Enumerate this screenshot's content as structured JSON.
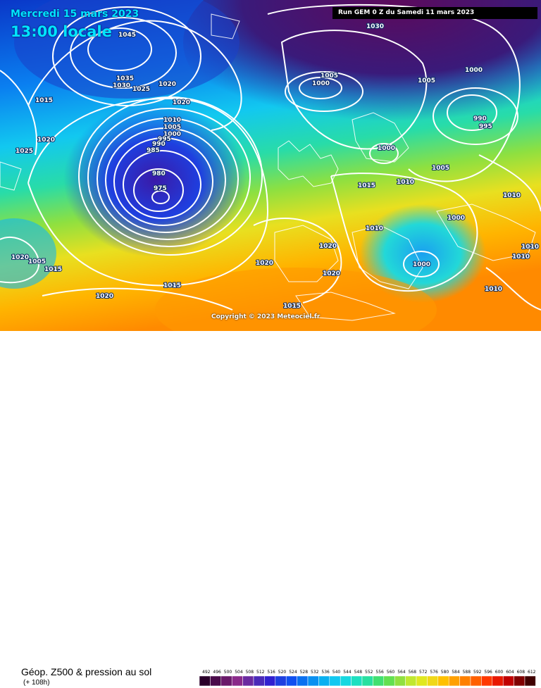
{
  "map": {
    "date_label": "Mercredi 15 mars 2023",
    "time_label": "13:00 locale",
    "run_label": "Run GEM 0 Z du Samedi 11 mars 2023",
    "copyright": "Copyright © 2023 Meteociel.fr",
    "isobar_labels": [
      "1045",
      "1035",
      "1030",
      "1025",
      "1020",
      "1015",
      "1020",
      "1025",
      "1020",
      "1010",
      "1005",
      "1000",
      "995",
      "990",
      "985",
      "980",
      "975",
      "1005",
      "1000",
      "1005",
      "1000",
      "1000",
      "990",
      "995",
      "1005",
      "1015",
      "1010",
      "1010",
      "1000",
      "1010",
      "1020",
      "1020",
      "1020",
      "1010",
      "1010",
      "1000",
      "1005",
      "1015",
      "1015",
      "1020",
      "1015",
      "1030",
      "1010",
      "1020"
    ],
    "palette": [
      "#5c0a5c",
      "#8a1f8a",
      "#3a1aa8",
      "#1e3fe0",
      "#0a7ff0",
      "#12c8f0",
      "#22e0b8",
      "#62e060",
      "#c0e830",
      "#f0e020",
      "#ffb400",
      "#ff7a00"
    ]
  },
  "legend": {
    "title": "Géop. Z500 & pression au sol",
    "step": "(+ 108h)",
    "ticks": [
      "492",
      "496",
      "500",
      "504",
      "508",
      "512",
      "516",
      "520",
      "524",
      "528",
      "532",
      "536",
      "540",
      "544",
      "548",
      "552",
      "556",
      "560",
      "564",
      "568",
      "572",
      "576",
      "580",
      "584",
      "588",
      "592",
      "596",
      "600",
      "604",
      "608",
      "612"
    ]
  }
}
